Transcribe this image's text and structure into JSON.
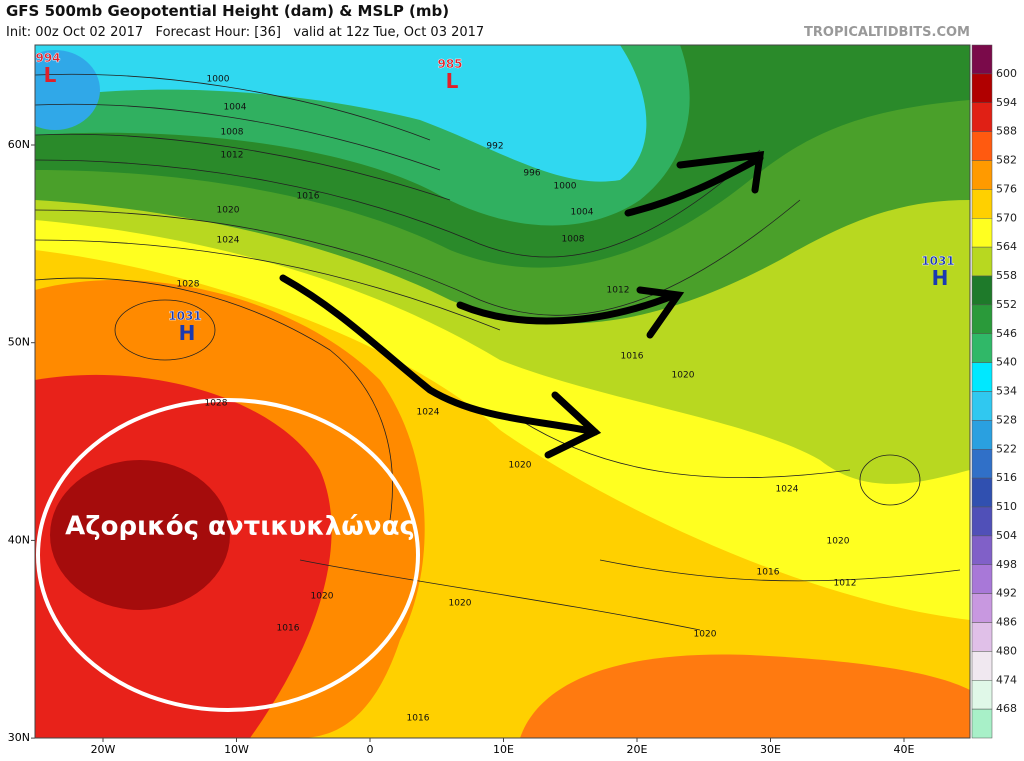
{
  "header": {
    "title": "GFS 500mb Geopotential Height (dam) & MSLP (mb)",
    "subtitle": "Init: 00z Oct 02 2017   Forecast Hour: [36]   valid at 12z Tue, Oct 03 2017",
    "site": "TROPICALTIDBITS.COM"
  },
  "map": {
    "lat_labels": [
      "60N",
      "50N",
      "40N",
      "30N"
    ],
    "lon_labels": [
      "20W",
      "10W",
      "0",
      "10E",
      "20E",
      "30E",
      "40E"
    ],
    "pressure_centers": [
      {
        "label": "L",
        "value": "994"
      },
      {
        "label": "L",
        "value": "985"
      },
      {
        "label": "H",
        "value": "1031"
      },
      {
        "label": "H",
        "value": "1031"
      }
    ],
    "isobar_labels": [
      "1000",
      "1004",
      "1008",
      "1012",
      "1020",
      "1024",
      "1028",
      "1016",
      "992",
      "996",
      "1000",
      "1004",
      "1008",
      "1012",
      "1016",
      "1020",
      "1024",
      "1020",
      "1024",
      "1020",
      "1016",
      "1012",
      "1020",
      "1020",
      "1016",
      "1020",
      "1016",
      "1028"
    ],
    "annotation": "Αζορικός αντικυκλώνας"
  },
  "colorbar": {
    "labels": [
      600,
      594,
      588,
      582,
      576,
      570,
      564,
      558,
      552,
      546,
      540,
      534,
      528,
      522,
      516,
      510,
      504,
      498,
      492,
      486,
      480,
      474,
      468
    ],
    "colors": [
      "#7a0a4a",
      "#b00000",
      "#e02015",
      "#ff5a10",
      "#ff9a00",
      "#ffd000",
      "#ffff20",
      "#b8d820",
      "#1e7a2a",
      "#2a9a3a",
      "#30b868",
      "#00e8ff",
      "#30c8f0",
      "#2aa0e0",
      "#3070c8",
      "#3050b0",
      "#5050b8",
      "#8060c8",
      "#a878d8",
      "#c898e0",
      "#e0c0e8",
      "#f0e8f0",
      "#e0f8e8",
      "#a8f0c8"
    ]
  }
}
